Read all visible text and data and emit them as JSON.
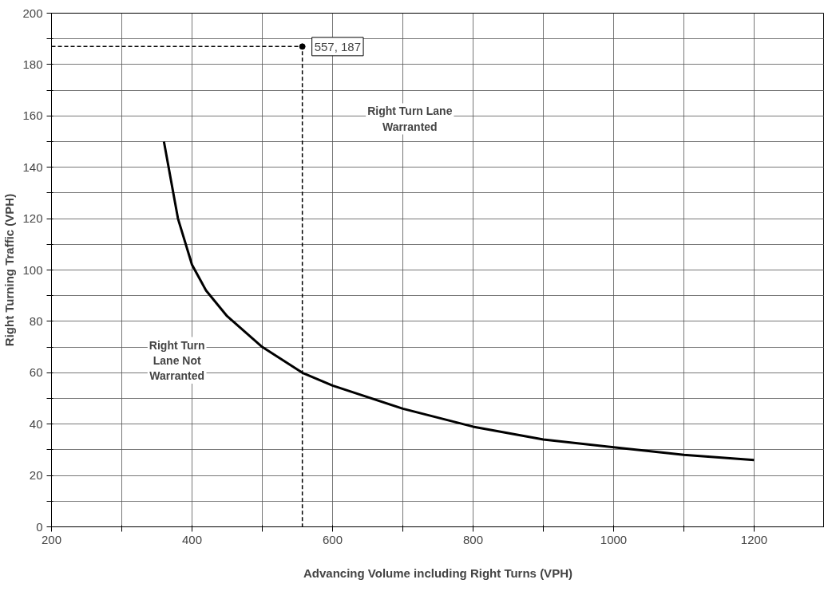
{
  "chart_data": {
    "type": "line",
    "xlabel": "Advancing Volume including Right Turns (VPH)",
    "ylabel": "Right Turning Traffic (VPH)",
    "xlim": [
      200,
      1300
    ],
    "ylim": [
      0,
      200
    ],
    "xticks": [
      200,
      {
        "value": 300,
        "label": null
      },
      400,
      {
        "value": 500,
        "label": null
      },
      600,
      {
        "value": 700,
        "label": null
      },
      800,
      {
        "value": 900,
        "label": null
      },
      1000,
      {
        "value": 1100,
        "label": null
      },
      1200,
      {
        "value": 1300,
        "label": null
      }
    ],
    "yticks": [
      0,
      {
        "value": 10,
        "label": null
      },
      20,
      {
        "value": 30,
        "label": null
      },
      40,
      {
        "value": 50,
        "label": null
      },
      60,
      {
        "value": 70,
        "label": null
      },
      80,
      {
        "value": 90,
        "label": null
      },
      100,
      {
        "value": 110,
        "label": null
      },
      120,
      {
        "value": 130,
        "label": null
      },
      140,
      {
        "value": 150,
        "label": null
      },
      160,
      {
        "value": 170,
        "label": null
      },
      180,
      {
        "value": 190,
        "label": null
      },
      200
    ],
    "grid": true,
    "series": [
      {
        "color": "#000000",
        "line_style": "solid",
        "x": [
          360,
          380,
          400,
          420,
          450,
          500,
          557,
          600,
          700,
          800,
          900,
          1000,
          1100,
          1200
        ],
        "values": [
          150,
          120,
          102,
          92,
          82,
          70,
          60,
          55,
          46,
          39,
          34,
          31,
          28,
          26
        ]
      },
      {
        "type": "line",
        "color": "#000000",
        "line_style": "dashed",
        "x": [
          200,
          557,
          557
        ],
        "values": [
          187,
          187,
          0
        ]
      },
      {
        "type": "scatter",
        "color": "#000000",
        "marker": "circle",
        "x": [
          557
        ],
        "values": [
          187
        ]
      }
    ],
    "annotations": [
      {
        "text": "557, 187",
        "x": 557,
        "y": 187
      },
      "Right Turn Lane\nWarranted",
      "Right Turn\nLane Not\nWarranted"
    ]
  }
}
